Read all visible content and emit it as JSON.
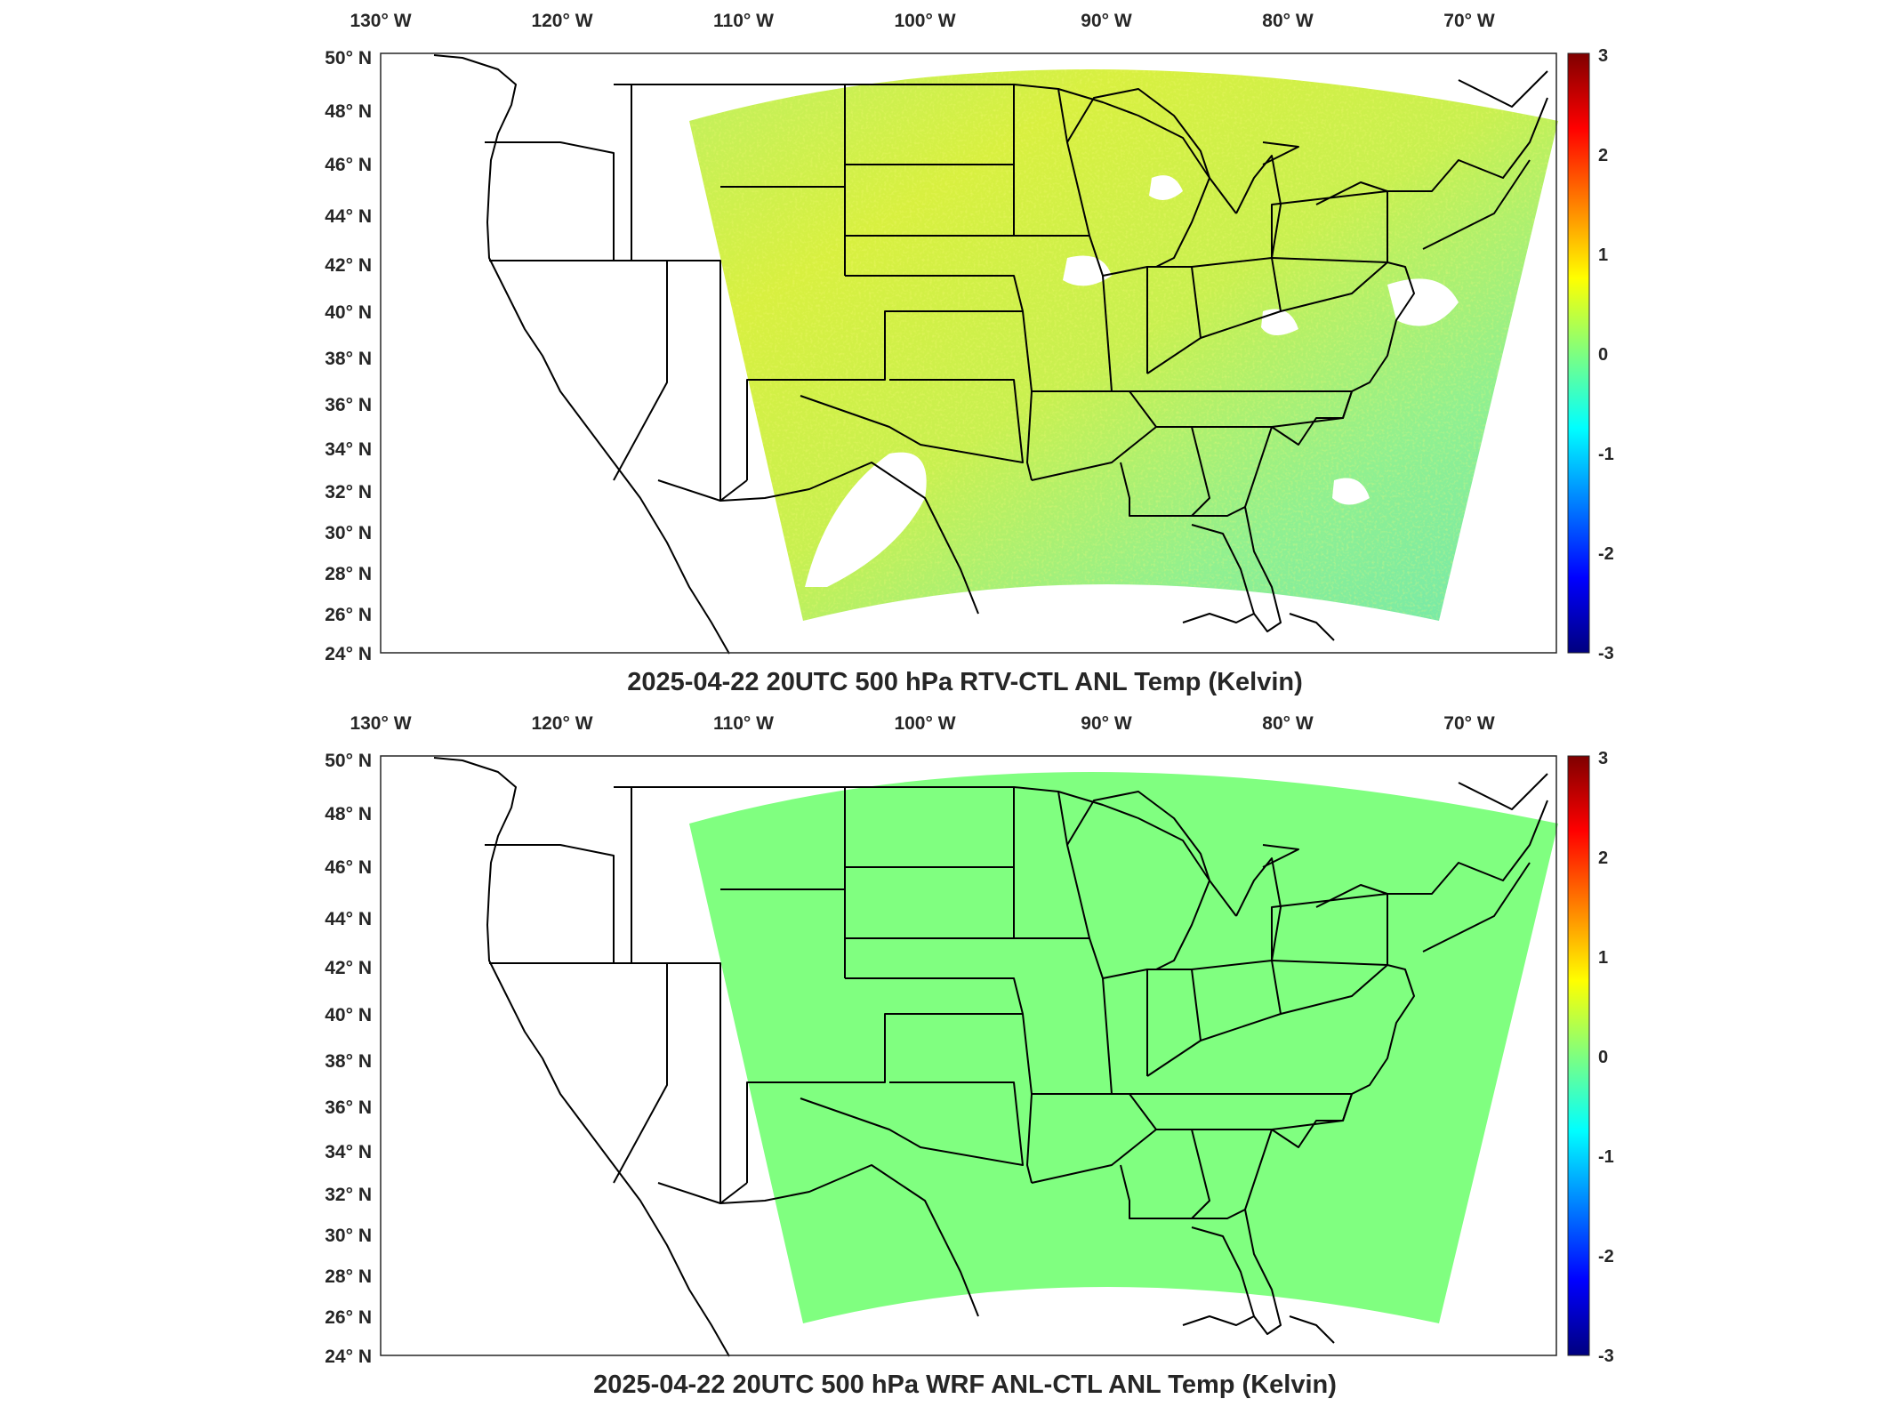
{
  "colors": {
    "background": "#ffffff",
    "frame": "#262626",
    "coastline": "#000000",
    "uniform_field": "#80ff80",
    "colormap": [
      "#00007f",
      "#0000ff",
      "#007fff",
      "#00ffff",
      "#7fff7f",
      "#ffff00",
      "#ff7f00",
      "#ff0000",
      "#7f0000"
    ]
  },
  "map": {
    "lon_labels": [
      "130° W",
      "120° W",
      "110° W",
      "100° W",
      "90° W",
      "80° W",
      "70° W"
    ],
    "lat_labels": [
      "50° N",
      "48° N",
      "46° N",
      "44° N",
      "42° N",
      "40° N",
      "38° N",
      "36° N",
      "34° N",
      "32° N",
      "30° N",
      "28° N",
      "26° N",
      "24° N"
    ]
  },
  "colorbar": {
    "ticks": [
      "3",
      "2",
      "1",
      "0",
      "-1",
      "-2",
      "-3"
    ],
    "range": [
      -3,
      3
    ]
  },
  "panels": [
    {
      "title": "2025-04-22 20UTC 500 hPa RTV-CTL ANL Temp (Kelvin)",
      "field": "noisy-difference"
    },
    {
      "title": "2025-04-22 20UTC 500 hPa WRF ANL-CTL ANL Temp (Kelvin)",
      "field": "uniform-zero"
    }
  ]
}
